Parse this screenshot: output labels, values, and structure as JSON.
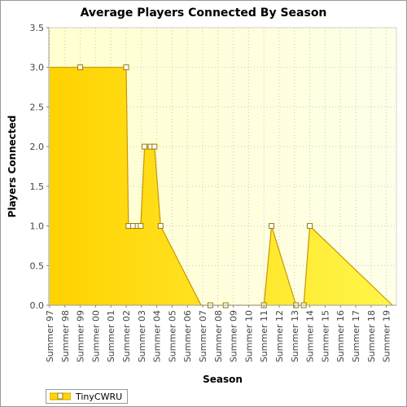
{
  "chart_data": {
    "type": "area",
    "title": "Average Players Connected By Season",
    "xlabel": "Season",
    "ylabel": "Players Connected",
    "ylim": [
      0,
      3.5
    ],
    "yticks": [
      "0.0",
      "0.5",
      "1.0",
      "1.5",
      "2.0",
      "2.5",
      "3.0",
      "3.5"
    ],
    "grid": true,
    "legend_position": "bottom-left",
    "categories": [
      "Summer 97",
      "Summer 98",
      "Summer 99",
      "Summer 00",
      "Summer 01",
      "Summer 02",
      "Summer 03",
      "Summer 04",
      "Summer 05",
      "Summer 06",
      "Summer 07",
      "Summer 08",
      "Summer 09",
      "Summer 10",
      "Summer 11",
      "Summer 12",
      "Summer 13",
      "Summer 14",
      "Summer 15",
      "Summer 16",
      "Summer 17",
      "Summer 18",
      "Summer 19"
    ],
    "series": [
      {
        "name": "TinyCWRU",
        "color": "#ffd700",
        "points": [
          {
            "x": "Summer 97",
            "y": 3.0,
            "marker": false
          },
          {
            "x": "Summer 99",
            "y": 3.0,
            "marker": true
          },
          {
            "x": "Summer 02",
            "y": 3.0,
            "marker": true
          },
          {
            "x": "Summer 02 (+0.15)",
            "y": 1.0,
            "marker": true
          },
          {
            "x": "Summer 02 (+0.45)",
            "y": 1.0,
            "marker": true
          },
          {
            "x": "Summer 02 (+0.75)",
            "y": 1.0,
            "marker": true
          },
          {
            "x": "Summer 03 (-0.05)",
            "y": 1.0,
            "marker": true
          },
          {
            "x": "Summer 03 (+0.2)",
            "y": 2.0,
            "marker": true
          },
          {
            "x": "Summer 03 (+0.6)",
            "y": 2.0,
            "marker": true
          },
          {
            "x": "Summer 03 (+0.85)",
            "y": 2.0,
            "marker": true
          },
          {
            "x": "Summer 04 (+0.25)",
            "y": 1.0,
            "marker": true
          },
          {
            "x": "Summer 06 (+0.9)",
            "y": 0.0,
            "marker": false
          },
          {
            "x": "Summer 07 (+0.5)",
            "y": 0.0,
            "marker": true
          },
          {
            "x": "Summer 08 (+0.5)",
            "y": 0.0,
            "marker": true
          },
          {
            "x": "Summer 11",
            "y": 0.0,
            "marker": true
          },
          {
            "x": "Summer 11 (+0.5)",
            "y": 1.0,
            "marker": true
          },
          {
            "x": "Summer 13 (+0.1)",
            "y": 0.0,
            "marker": true
          },
          {
            "x": "Summer 13 (+0.6)",
            "y": 0.0,
            "marker": true
          },
          {
            "x": "Summer 14",
            "y": 1.0,
            "marker": true
          },
          {
            "x": "Summer 19 (+0.4)",
            "y": 0.0,
            "marker": false
          }
        ]
      }
    ]
  },
  "legend": {
    "label": "TinyCWRU"
  }
}
